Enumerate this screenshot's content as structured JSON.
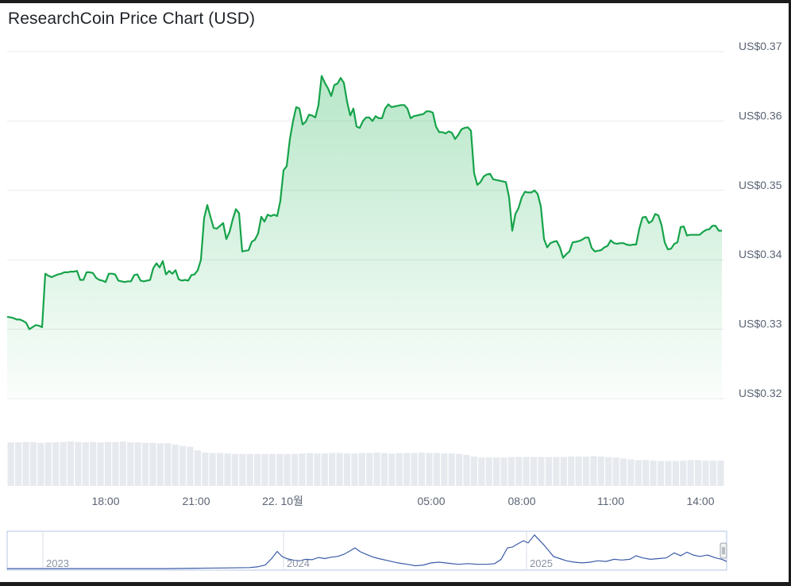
{
  "title": "ResearchCoin Price Chart (USD)",
  "chart_data": {
    "type": "area",
    "title": "ResearchCoin Price Chart (USD)",
    "y_tick_labels": [
      "US$0.37",
      "US$0.36",
      "US$0.35",
      "US$0.34",
      "US$0.33",
      "US$0.32"
    ],
    "y_ticks": [
      0.37,
      0.36,
      0.35,
      0.34,
      0.33,
      0.32
    ],
    "ylim": [
      0.32,
      0.37
    ],
    "x_tick_labels": [
      "18:00",
      "21:00",
      "22. 10월",
      "05:00",
      "08:00",
      "11:00",
      "14:00"
    ],
    "grid": true,
    "price_points": [
      [
        0,
        0.3318
      ],
      [
        4,
        0.3317
      ],
      [
        8,
        0.3316
      ],
      [
        12,
        0.3314
      ],
      [
        16,
        0.3314
      ],
      [
        20,
        0.3312
      ],
      [
        24,
        0.3309
      ],
      [
        28,
        0.33
      ],
      [
        32,
        0.3303
      ],
      [
        36,
        0.3306
      ],
      [
        40,
        0.3305
      ],
      [
        44,
        0.3303
      ],
      [
        48,
        0.338
      ],
      [
        52,
        0.3377
      ],
      [
        56,
        0.3375
      ],
      [
        60,
        0.3377
      ],
      [
        64,
        0.3379
      ],
      [
        68,
        0.338
      ],
      [
        72,
        0.3382
      ],
      [
        76,
        0.3382
      ],
      [
        80,
        0.3383
      ],
      [
        84,
        0.3383
      ],
      [
        88,
        0.3384
      ],
      [
        92,
        0.3371
      ],
      [
        96,
        0.3371
      ],
      [
        100,
        0.3382
      ],
      [
        104,
        0.3382
      ],
      [
        108,
        0.3381
      ],
      [
        112,
        0.3374
      ],
      [
        116,
        0.3371
      ],
      [
        120,
        0.337
      ],
      [
        124,
        0.3368
      ],
      [
        128,
        0.338
      ],
      [
        132,
        0.338
      ],
      [
        136,
        0.3379
      ],
      [
        140,
        0.337
      ],
      [
        144,
        0.3369
      ],
      [
        148,
        0.3368
      ],
      [
        152,
        0.3369
      ],
      [
        156,
        0.3369
      ],
      [
        160,
        0.3378
      ],
      [
        164,
        0.3379
      ],
      [
        168,
        0.337
      ],
      [
        172,
        0.3369
      ],
      [
        176,
        0.337
      ],
      [
        180,
        0.3371
      ],
      [
        184,
        0.3388
      ],
      [
        188,
        0.3395
      ],
      [
        192,
        0.3389
      ],
      [
        196,
        0.3398
      ],
      [
        200,
        0.3379
      ],
      [
        204,
        0.3384
      ],
      [
        208,
        0.338
      ],
      [
        212,
        0.3385
      ],
      [
        216,
        0.3372
      ],
      [
        220,
        0.337
      ],
      [
        224,
        0.3371
      ],
      [
        228,
        0.337
      ],
      [
        232,
        0.3378
      ],
      [
        236,
        0.3379
      ],
      [
        240,
        0.3385
      ],
      [
        244,
        0.34
      ],
      [
        248,
        0.346
      ],
      [
        252,
        0.3479
      ],
      [
        256,
        0.3462
      ],
      [
        260,
        0.3446
      ],
      [
        264,
        0.3445
      ],
      [
        268,
        0.3449
      ],
      [
        272,
        0.3453
      ],
      [
        276,
        0.343
      ],
      [
        280,
        0.344
      ],
      [
        284,
        0.3458
      ],
      [
        288,
        0.3473
      ],
      [
        292,
        0.3467
      ],
      [
        296,
        0.3412
      ],
      [
        300,
        0.3413
      ],
      [
        304,
        0.3414
      ],
      [
        308,
        0.3426
      ],
      [
        312,
        0.3429
      ],
      [
        316,
        0.3438
      ],
      [
        320,
        0.3462
      ],
      [
        324,
        0.3455
      ],
      [
        328,
        0.3465
      ],
      [
        332,
        0.3463
      ],
      [
        336,
        0.3465
      ],
      [
        340,
        0.3463
      ],
      [
        344,
        0.3485
      ],
      [
        348,
        0.3529
      ],
      [
        352,
        0.3535
      ],
      [
        356,
        0.3574
      ],
      [
        360,
        0.36
      ],
      [
        364,
        0.362
      ],
      [
        368,
        0.3618
      ],
      [
        372,
        0.3595
      ],
      [
        376,
        0.3599
      ],
      [
        380,
        0.3609
      ],
      [
        384,
        0.3608
      ],
      [
        388,
        0.3605
      ],
      [
        392,
        0.3623
      ],
      [
        396,
        0.3665
      ],
      [
        400,
        0.3655
      ],
      [
        404,
        0.3647
      ],
      [
        408,
        0.3636
      ],
      [
        412,
        0.3652
      ],
      [
        416,
        0.3654
      ],
      [
        420,
        0.3662
      ],
      [
        424,
        0.3655
      ],
      [
        428,
        0.3628
      ],
      [
        432,
        0.3608
      ],
      [
        436,
        0.3618
      ],
      [
        440,
        0.3592
      ],
      [
        444,
        0.359
      ],
      [
        448,
        0.36
      ],
      [
        452,
        0.3605
      ],
      [
        456,
        0.3605
      ],
      [
        460,
        0.36
      ],
      [
        464,
        0.3607
      ],
      [
        468,
        0.3604
      ],
      [
        472,
        0.3604
      ],
      [
        476,
        0.3618
      ],
      [
        480,
        0.3624
      ],
      [
        484,
        0.362
      ],
      [
        488,
        0.3621
      ],
      [
        492,
        0.3622
      ],
      [
        496,
        0.3623
      ],
      [
        500,
        0.3623
      ],
      [
        504,
        0.3618
      ],
      [
        508,
        0.3604
      ],
      [
        512,
        0.3607
      ],
      [
        516,
        0.3608
      ],
      [
        520,
        0.3609
      ],
      [
        524,
        0.361
      ],
      [
        528,
        0.3614
      ],
      [
        532,
        0.3614
      ],
      [
        536,
        0.3612
      ],
      [
        540,
        0.3592
      ],
      [
        544,
        0.3584
      ],
      [
        548,
        0.3584
      ],
      [
        552,
        0.3582
      ],
      [
        556,
        0.3585
      ],
      [
        560,
        0.3583
      ],
      [
        564,
        0.3574
      ],
      [
        568,
        0.358
      ],
      [
        572,
        0.3588
      ],
      [
        576,
        0.359
      ],
      [
        580,
        0.3591
      ],
      [
        584,
        0.3586
      ],
      [
        588,
        0.3525
      ],
      [
        592,
        0.3508
      ],
      [
        596,
        0.3512
      ],
      [
        600,
        0.352
      ],
      [
        604,
        0.3523
      ],
      [
        608,
        0.3524
      ],
      [
        612,
        0.3516
      ],
      [
        616,
        0.3515
      ],
      [
        620,
        0.3514
      ],
      [
        624,
        0.3513
      ],
      [
        628,
        0.3512
      ],
      [
        632,
        0.349
      ],
      [
        636,
        0.3442
      ],
      [
        640,
        0.3466
      ],
      [
        644,
        0.3475
      ],
      [
        648,
        0.349
      ],
      [
        652,
        0.3498
      ],
      [
        656,
        0.3497
      ],
      [
        660,
        0.3497
      ],
      [
        664,
        0.35
      ],
      [
        668,
        0.3495
      ],
      [
        672,
        0.3477
      ],
      [
        676,
        0.343
      ],
      [
        680,
        0.3418
      ],
      [
        684,
        0.3424
      ],
      [
        688,
        0.3426
      ],
      [
        692,
        0.3427
      ],
      [
        696,
        0.3418
      ],
      [
        700,
        0.3403
      ],
      [
        704,
        0.3408
      ],
      [
        708,
        0.3412
      ],
      [
        712,
        0.3425
      ],
      [
        716,
        0.3426
      ],
      [
        720,
        0.3427
      ],
      [
        724,
        0.3429
      ],
      [
        728,
        0.3432
      ],
      [
        732,
        0.3432
      ],
      [
        736,
        0.3417
      ],
      [
        740,
        0.3412
      ],
      [
        744,
        0.3413
      ],
      [
        748,
        0.3414
      ],
      [
        752,
        0.3418
      ],
      [
        756,
        0.342
      ],
      [
        760,
        0.3428
      ],
      [
        764,
        0.3424
      ],
      [
        768,
        0.3423
      ],
      [
        772,
        0.3424
      ],
      [
        776,
        0.3424
      ],
      [
        780,
        0.3422
      ],
      [
        784,
        0.3421
      ],
      [
        788,
        0.3422
      ],
      [
        792,
        0.3422
      ],
      [
        796,
        0.3445
      ],
      [
        800,
        0.3461
      ],
      [
        804,
        0.3462
      ],
      [
        808,
        0.3453
      ],
      [
        812,
        0.3456
      ],
      [
        816,
        0.3466
      ],
      [
        820,
        0.3464
      ],
      [
        824,
        0.345
      ],
      [
        828,
        0.3425
      ],
      [
        832,
        0.3415
      ],
      [
        836,
        0.3416
      ],
      [
        840,
        0.3423
      ],
      [
        844,
        0.3425
      ],
      [
        848,
        0.3447
      ],
      [
        852,
        0.3448
      ],
      [
        856,
        0.3435
      ],
      [
        860,
        0.3436
      ],
      [
        864,
        0.3436
      ],
      [
        868,
        0.3436
      ],
      [
        872,
        0.3436
      ],
      [
        876,
        0.344
      ],
      [
        880,
        0.3443
      ],
      [
        884,
        0.3444
      ],
      [
        888,
        0.3449
      ],
      [
        892,
        0.3449
      ],
      [
        896,
        0.3442
      ],
      [
        900,
        0.3442
      ]
    ],
    "volume_bar_heights_relative": [
      0.98,
      0.98,
      0.99,
      0.99,
      0.97,
      0.98,
      0.98,
      0.99,
      1,
      0.99,
      0.98,
      0.99,
      0.98,
      0.99,
      0.99,
      1,
      0.98,
      0.98,
      0.97,
      0.97,
      0.96,
      0.96,
      0.93,
      0.9,
      0.88,
      0.8,
      0.75,
      0.74,
      0.74,
      0.73,
      0.72,
      0.72,
      0.72,
      0.72,
      0.72,
      0.72,
      0.72,
      0.72,
      0.72,
      0.73,
      0.74,
      0.73,
      0.73,
      0.74,
      0.74,
      0.73,
      0.73,
      0.74,
      0.74,
      0.75,
      0.74,
      0.73,
      0.74,
      0.74,
      0.74,
      0.75,
      0.74,
      0.74,
      0.73,
      0.73,
      0.72,
      0.7,
      0.66,
      0.64,
      0.64,
      0.64,
      0.64,
      0.65,
      0.65,
      0.65,
      0.65,
      0.65,
      0.65,
      0.65,
      0.65,
      0.66,
      0.66,
      0.66,
      0.67,
      0.66,
      0.65,
      0.64,
      0.62,
      0.6,
      0.58,
      0.58,
      0.57,
      0.56,
      0.56,
      0.56,
      0.57,
      0.58,
      0.58,
      0.57,
      0.57,
      0.57
    ]
  },
  "navigator": {
    "year_labels": [
      "2023",
      "2024",
      "2025"
    ],
    "history_points": [
      [
        0,
        0.02
      ],
      [
        40,
        0.02
      ],
      [
        80,
        0.02
      ],
      [
        120,
        0.02
      ],
      [
        160,
        0.02
      ],
      [
        200,
        0.02
      ],
      [
        240,
        0.03
      ],
      [
        280,
        0.04
      ],
      [
        305,
        0.05
      ],
      [
        315,
        0.07
      ],
      [
        325,
        0.12
      ],
      [
        333,
        0.3
      ],
      [
        340,
        0.5
      ],
      [
        346,
        0.36
      ],
      [
        352,
        0.3
      ],
      [
        360,
        0.26
      ],
      [
        368,
        0.24
      ],
      [
        376,
        0.28
      ],
      [
        384,
        0.27
      ],
      [
        392,
        0.33
      ],
      [
        400,
        0.3
      ],
      [
        408,
        0.34
      ],
      [
        416,
        0.36
      ],
      [
        424,
        0.42
      ],
      [
        432,
        0.52
      ],
      [
        438,
        0.6
      ],
      [
        444,
        0.5
      ],
      [
        452,
        0.42
      ],
      [
        460,
        0.35
      ],
      [
        468,
        0.3
      ],
      [
        480,
        0.24
      ],
      [
        492,
        0.18
      ],
      [
        504,
        0.14
      ],
      [
        514,
        0.1
      ],
      [
        524,
        0.12
      ],
      [
        534,
        0.18
      ],
      [
        544,
        0.2
      ],
      [
        556,
        0.17
      ],
      [
        568,
        0.14
      ],
      [
        580,
        0.16
      ],
      [
        592,
        0.14
      ],
      [
        604,
        0.14
      ],
      [
        614,
        0.16
      ],
      [
        622,
        0.28
      ],
      [
        630,
        0.6
      ],
      [
        636,
        0.62
      ],
      [
        642,
        0.7
      ],
      [
        650,
        0.8
      ],
      [
        656,
        0.74
      ],
      [
        664,
        0.96
      ],
      [
        670,
        0.82
      ],
      [
        676,
        0.68
      ],
      [
        682,
        0.52
      ],
      [
        688,
        0.36
      ],
      [
        696,
        0.3
      ],
      [
        704,
        0.24
      ],
      [
        714,
        0.2
      ],
      [
        724,
        0.18
      ],
      [
        734,
        0.2
      ],
      [
        744,
        0.24
      ],
      [
        754,
        0.22
      ],
      [
        764,
        0.28
      ],
      [
        774,
        0.26
      ],
      [
        784,
        0.28
      ],
      [
        792,
        0.38
      ],
      [
        800,
        0.32
      ],
      [
        810,
        0.28
      ],
      [
        820,
        0.3
      ],
      [
        830,
        0.32
      ],
      [
        840,
        0.46
      ],
      [
        848,
        0.38
      ],
      [
        856,
        0.48
      ],
      [
        864,
        0.4
      ],
      [
        872,
        0.36
      ],
      [
        882,
        0.4
      ],
      [
        892,
        0.32
      ],
      [
        900,
        0.28
      ],
      [
        906,
        0.22
      ]
    ]
  }
}
